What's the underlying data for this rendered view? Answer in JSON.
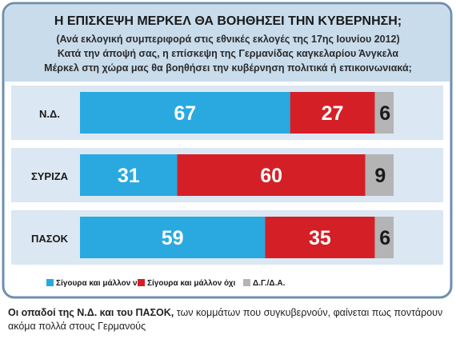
{
  "chart_data": {
    "type": "bar",
    "stacked": true,
    "orientation": "horizontal",
    "title": "Η ΕΠΙΣΚΕΨΗ ΜΕΡΚΕΛ ΘΑ ΒΟΗΘΗΣΕΙ ΤΗΝ ΚΥΒΕΡΝΗΣΗ;",
    "subtitle": "(Ανά εκλογική συμπεριφορά στις εθνικές εκλογές της 17ης Ιουνίου 2012)",
    "question_line1": "Κατά την άποψή σας, η επίσκεψη της Γερμανίδας καγκελαρίου Άνγκελα",
    "question_line2": "Μέρκελ στη χώρα μας θα βοηθήσει την κυβέρνηση πολιτικά ή επικοινωνιακά;",
    "unit": "%",
    "categories": [
      "Ν.Δ.",
      "ΣΥΡΙΖΑ",
      "ΠΑΣΟΚ"
    ],
    "series": [
      {
        "name": "Σίγουρα και μάλλον ναι",
        "color": "#29a9e0",
        "values": [
          67,
          31,
          59
        ]
      },
      {
        "name": "Σίγουρα και μάλλον όχι",
        "color": "#d41f26",
        "values": [
          27,
          60,
          35
        ]
      },
      {
        "name": "Δ.Γ./Δ.Α.",
        "color": "#b4b4b4",
        "values": [
          6,
          9,
          6
        ]
      }
    ],
    "xlim": [
      0,
      100
    ],
    "legend_position": "bottom"
  },
  "caption": {
    "bold": "Οι οπαδοί της Ν.Δ. και του ΠΑΣΟΚ,",
    "rest": " των κομμάτων που συγκυβερνούν, φαίνεται πως ποντάρουν ακόμα πολλά στους Γερμανούς"
  },
  "colors": {
    "header_bg": "#c9dcec",
    "border": "#6f8fb0",
    "panel_bg": "#ffffff"
  }
}
